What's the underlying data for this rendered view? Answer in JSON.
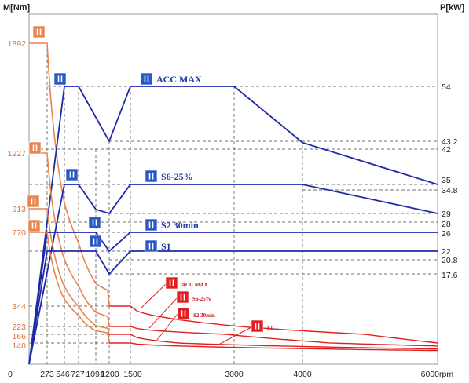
{
  "chart_data": {
    "type": "line",
    "title": "",
    "left_axis_label": "M[Nm]",
    "right_axis_label": "P[kW]",
    "x_unit": "rpm",
    "x_ticks": [
      {
        "value": 0,
        "label": "0"
      },
      {
        "value": 273,
        "label": "273"
      },
      {
        "value": 546,
        "label": "546"
      },
      {
        "value": 727,
        "label": "727"
      },
      {
        "value": 1091,
        "label": "1091"
      },
      {
        "value": 1200,
        "label": "1200"
      },
      {
        "value": 1500,
        "label": "1500"
      },
      {
        "value": 3000,
        "label": "3000"
      },
      {
        "value": 4000,
        "label": "4000"
      },
      {
        "value": 6000,
        "label": "6000"
      }
    ],
    "torque_ticks": [
      1892,
      1227,
      913,
      770,
      344,
      223,
      166,
      140
    ],
    "power_ticks": [
      54,
      43.2,
      42,
      35,
      34.8,
      29,
      28,
      26,
      22,
      20.8,
      17.6
    ],
    "colors": {
      "torque": "#e8844e",
      "torque_icon": "#e8844e",
      "power": "#1f2aa8",
      "power_icon": "#2b59c3",
      "power_labels": "#1b3ca6",
      "power_hi_rpm": "#e02020",
      "power_hi_rpm_labels": "#cc1a1a",
      "grid": "#444444",
      "torque_tick_labels": "#e0703a",
      "axis_text": "#222222"
    },
    "series": [
      {
        "name": "ACC MAX",
        "torque": [
          [
            0,
            1892
          ],
          [
            273,
            1892
          ],
          [
            1200,
            344
          ],
          [
            6000,
            140
          ]
        ],
        "power": [
          [
            0,
            0
          ],
          [
            546,
            54
          ],
          [
            727,
            54
          ],
          [
            1200,
            43.2
          ],
          [
            1500,
            54
          ],
          [
            3000,
            54
          ],
          [
            4000,
            43
          ],
          [
            6000,
            35
          ]
        ]
      },
      {
        "name": "S6-25%",
        "torque": [
          [
            0,
            1227
          ],
          [
            273,
            1227
          ],
          [
            1200,
            223
          ],
          [
            6000,
            120
          ]
        ],
        "power": [
          [
            0,
            0
          ],
          [
            546,
            35
          ],
          [
            727,
            35
          ],
          [
            1091,
            30
          ],
          [
            1200,
            29
          ],
          [
            1500,
            35
          ],
          [
            4000,
            35
          ],
          [
            6000,
            29
          ]
        ]
      },
      {
        "name": "S2 30min",
        "torque": [
          [
            0,
            913
          ],
          [
            273,
            913
          ],
          [
            1200,
            166
          ],
          [
            6000,
            100
          ]
        ],
        "power": [
          [
            0,
            0
          ],
          [
            273,
            26
          ],
          [
            1091,
            26
          ],
          [
            1200,
            22
          ],
          [
            1500,
            26
          ],
          [
            6000,
            26
          ]
        ]
      },
      {
        "name": "S1",
        "torque": [
          [
            0,
            770
          ],
          [
            273,
            770
          ],
          [
            1200,
            140
          ],
          [
            6000,
            90
          ]
        ],
        "power": [
          [
            0,
            0
          ],
          [
            273,
            22
          ],
          [
            1091,
            22
          ],
          [
            1200,
            17.6
          ],
          [
            1500,
            22
          ],
          [
            6000,
            22
          ]
        ]
      }
    ]
  }
}
